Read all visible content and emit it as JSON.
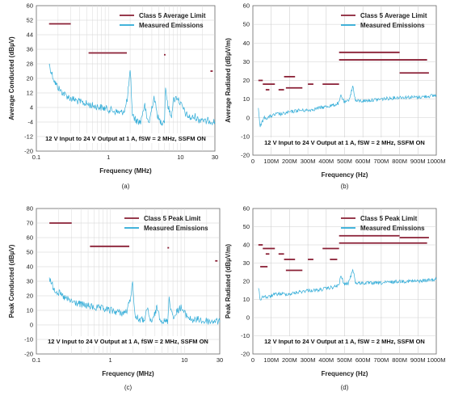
{
  "chart_data": [
    {
      "type": "line",
      "panel": "(a)",
      "xlabel": "Frequency (MHz)",
      "ylabel": "Average Conducted (dBµV)",
      "xscale": "log",
      "xlim": [
        0.1,
        30
      ],
      "ylim": [
        -20,
        60
      ],
      "x_ticks": [
        "0.1",
        "1",
        "10",
        "30"
      ],
      "y_ticks": [
        "60",
        "52",
        "44",
        "36",
        "28",
        "20",
        "12",
        "4",
        "-4",
        "-12",
        "-20"
      ],
      "condition": "12 V Input to 24 V Output at 1 A, fSW = 2 MHz, SSFM ON",
      "legend_position": "top-right",
      "grid": true,
      "limit": {
        "name": "Class 5 Average Limit",
        "color": "#8a1f35",
        "segments": [
          {
            "x": [
              0.15,
              0.3
            ],
            "y": 50
          },
          {
            "x": [
              0.53,
              1.8
            ],
            "y": 34
          },
          {
            "x": [
              5.9,
              6.2
            ],
            "y": 33
          },
          {
            "x": [
              26,
              28
            ],
            "y": 24
          }
        ]
      },
      "series": [
        {
          "name": "Measured Emissions",
          "color": "#29a9d6",
          "x": [
            0.15,
            0.16,
            0.18,
            0.2,
            0.22,
            0.25,
            0.3,
            0.35,
            0.4,
            0.5,
            0.6,
            0.8,
            1.0,
            1.2,
            1.5,
            1.7,
            1.85,
            1.95,
            2.0,
            2.05,
            2.15,
            2.4,
            2.8,
            3.0,
            3.2,
            3.4,
            3.7,
            4.0,
            4.3,
            4.6,
            5.0,
            5.5,
            6.0,
            6.2,
            6.6,
            7.0,
            7.5,
            8.0,
            9.0,
            10,
            11,
            12,
            14,
            16,
            18,
            20,
            22,
            25,
            30
          ],
          "y": [
            28,
            24,
            18,
            15,
            13,
            11,
            9,
            8,
            7,
            6,
            5,
            4,
            3,
            2,
            1,
            3,
            10,
            20,
            23,
            18,
            0,
            -3,
            -4,
            2,
            5,
            -2,
            -4,
            4,
            10,
            3,
            -3,
            -4,
            -3,
            16,
            6,
            2,
            0,
            8,
            10,
            6,
            3,
            0,
            -2,
            -1,
            -3,
            -2,
            -4,
            -3,
            -4
          ]
        }
      ]
    },
    {
      "type": "line",
      "panel": "(b)",
      "xlabel": "Frequency (Hz)",
      "ylabel": "Average Radiated (dBµV/m)",
      "xlim": [
        0,
        1000000000
      ],
      "ylim": [
        -20,
        60
      ],
      "x_ticks": [
        "0",
        "100M",
        "200M",
        "300M",
        "400M",
        "500M",
        "600M",
        "700M",
        "800M",
        "900M",
        "1000M"
      ],
      "y_ticks": [
        "60",
        "50",
        "40",
        "30",
        "20",
        "10",
        "0",
        "-10",
        "-20"
      ],
      "condition": "12 V Input to 24 V Output at 1 A, fSW = 2 MHz, SSFM ON",
      "legend_position": "top-right",
      "grid": true,
      "limit": {
        "name": "Class 5 Average Limit",
        "color": "#8a1f35",
        "segments": [
          {
            "x": [
              30000000,
              54000000
            ],
            "y": 20
          },
          {
            "x": [
              54000000,
              120000000
            ],
            "y": 18
          },
          {
            "x": [
              70000000,
              90000000
            ],
            "y": 15
          },
          {
            "x": [
              140000000,
              170000000
            ],
            "y": 15
          },
          {
            "x": [
              170000000,
              230000000
            ],
            "y": 22
          },
          {
            "x": [
              180000000,
              270000000
            ],
            "y": 16
          },
          {
            "x": [
              300000000,
              330000000
            ],
            "y": 18
          },
          {
            "x": [
              380000000,
              470000000
            ],
            "y": 18
          },
          {
            "x": [
              470000000,
              800000000
            ],
            "y": 35
          },
          {
            "x": [
              470000000,
              950000000
            ],
            "y": 31
          },
          {
            "x": [
              800000000,
              960000000
            ],
            "y": 24
          }
        ]
      },
      "series": [
        {
          "name": "Measured Emissions",
          "color": "#29a9d6",
          "x": [
            30000000,
            40000000,
            60000000,
            80000000,
            100000000,
            130000000,
            160000000,
            200000000,
            250000000,
            300000000,
            350000000,
            400000000,
            450000000,
            470000000,
            480000000,
            500000000,
            520000000,
            535000000,
            545000000,
            560000000,
            600000000,
            700000000,
            800000000,
            900000000,
            1000000000
          ],
          "y": [
            5,
            -5,
            0,
            0,
            1,
            2,
            2,
            3,
            4,
            4,
            5,
            6,
            7,
            8,
            12,
            8,
            9,
            13,
            17,
            9,
            9,
            10,
            11,
            11,
            12
          ]
        }
      ]
    },
    {
      "type": "line",
      "panel": "(c)",
      "xlabel": "Frequency (MHz)",
      "ylabel": "Peak Conducted (dBµV)",
      "xscale": "log",
      "xlim": [
        0.1,
        30
      ],
      "ylim": [
        -20,
        80
      ],
      "x_ticks": [
        "0.1",
        "1",
        "10",
        "30"
      ],
      "y_ticks": [
        "80",
        "70",
        "60",
        "50",
        "40",
        "30",
        "20",
        "10",
        "0",
        "-10",
        "-20"
      ],
      "condition": "12 V Input to 24 V Output at 1 A, fSW = 2 MHz, SSFM ON",
      "legend_position": "top-right",
      "grid": true,
      "limit": {
        "name": "Class 5 Peak Limit",
        "color": "#8a1f35",
        "segments": [
          {
            "x": [
              0.15,
              0.3
            ],
            "y": 70
          },
          {
            "x": [
              0.53,
              1.8
            ],
            "y": 54
          },
          {
            "x": [
              5.9,
              6.2
            ],
            "y": 53
          },
          {
            "x": [
              26,
              28
            ],
            "y": 44
          }
        ]
      },
      "series": [
        {
          "name": "Measured Emissions",
          "color": "#29a9d6",
          "x": [
            0.15,
            0.16,
            0.18,
            0.2,
            0.22,
            0.25,
            0.3,
            0.35,
            0.4,
            0.5,
            0.6,
            0.8,
            1.0,
            1.2,
            1.5,
            1.7,
            1.85,
            1.95,
            2.0,
            2.05,
            2.15,
            2.4,
            2.8,
            3.0,
            3.2,
            3.4,
            3.7,
            4.0,
            4.3,
            4.6,
            5.0,
            5.5,
            6.0,
            6.2,
            6.6,
            7.0,
            7.5,
            8.0,
            9.0,
            10,
            11,
            12,
            14,
            16,
            18,
            20,
            22,
            25,
            30
          ],
          "y": [
            33,
            28,
            24,
            22,
            20,
            18,
            16,
            15,
            14,
            13,
            12,
            11,
            10,
            9,
            8,
            10,
            18,
            26,
            28,
            22,
            6,
            4,
            3,
            7,
            10,
            4,
            2,
            8,
            12,
            6,
            3,
            2,
            3,
            20,
            10,
            7,
            5,
            10,
            12,
            8,
            6,
            4,
            3,
            4,
            2,
            3,
            2,
            3,
            2
          ]
        }
      ]
    },
    {
      "type": "line",
      "panel": "(d)",
      "xlabel": "Frequency (Hz)",
      "ylabel": "Peak Radiated (dBµV/m)",
      "xlim": [
        0,
        1000000000
      ],
      "ylim": [
        -20,
        60
      ],
      "x_ticks": [
        "0",
        "100M",
        "200M",
        "300M",
        "400M",
        "500M",
        "600M",
        "700M",
        "800M",
        "900M",
        "1000M"
      ],
      "y_ticks": [
        "60",
        "50",
        "40",
        "30",
        "20",
        "10",
        "0",
        "-10",
        "-20"
      ],
      "condition": "12 V Input to 24 V Output at 1 A, fSW = 2 MHz, SSFM ON",
      "legend_position": "top-right",
      "grid": true,
      "limit": {
        "name": "Class 5 Peak Limit",
        "color": "#8a1f35",
        "segments": [
          {
            "x": [
              30000000,
              54000000
            ],
            "y": 40
          },
          {
            "x": [
              54000000,
              120000000
            ],
            "y": 38
          },
          {
            "x": [
              70000000,
              90000000
            ],
            "y": 35
          },
          {
            "x": [
              40000000,
              80000000
            ],
            "y": 28
          },
          {
            "x": [
              140000000,
              170000000
            ],
            "y": 35
          },
          {
            "x": [
              170000000,
              230000000
            ],
            "y": 32
          },
          {
            "x": [
              180000000,
              270000000
            ],
            "y": 26
          },
          {
            "x": [
              300000000,
              330000000
            ],
            "y": 32
          },
          {
            "x": [
              380000000,
              470000000
            ],
            "y": 38
          },
          {
            "x": [
              420000000,
              460000000
            ],
            "y": 32
          },
          {
            "x": [
              470000000,
              800000000
            ],
            "y": 45
          },
          {
            "x": [
              470000000,
              950000000
            ],
            "y": 41
          },
          {
            "x": [
              800000000,
              960000000
            ],
            "y": 44
          }
        ]
      },
      "series": [
        {
          "name": "Measured Emissions",
          "color": "#29a9d6",
          "x": [
            30000000,
            40000000,
            60000000,
            80000000,
            100000000,
            130000000,
            160000000,
            200000000,
            250000000,
            300000000,
            350000000,
            400000000,
            450000000,
            470000000,
            480000000,
            500000000,
            520000000,
            535000000,
            545000000,
            560000000,
            600000000,
            700000000,
            800000000,
            900000000,
            1000000000
          ],
          "y": [
            17,
            10,
            12,
            11,
            12,
            13,
            13,
            13,
            14,
            15,
            15,
            16,
            17,
            18,
            23,
            18,
            19,
            23,
            27,
            19,
            19,
            19,
            20,
            20,
            21
          ]
        }
      ]
    }
  ]
}
